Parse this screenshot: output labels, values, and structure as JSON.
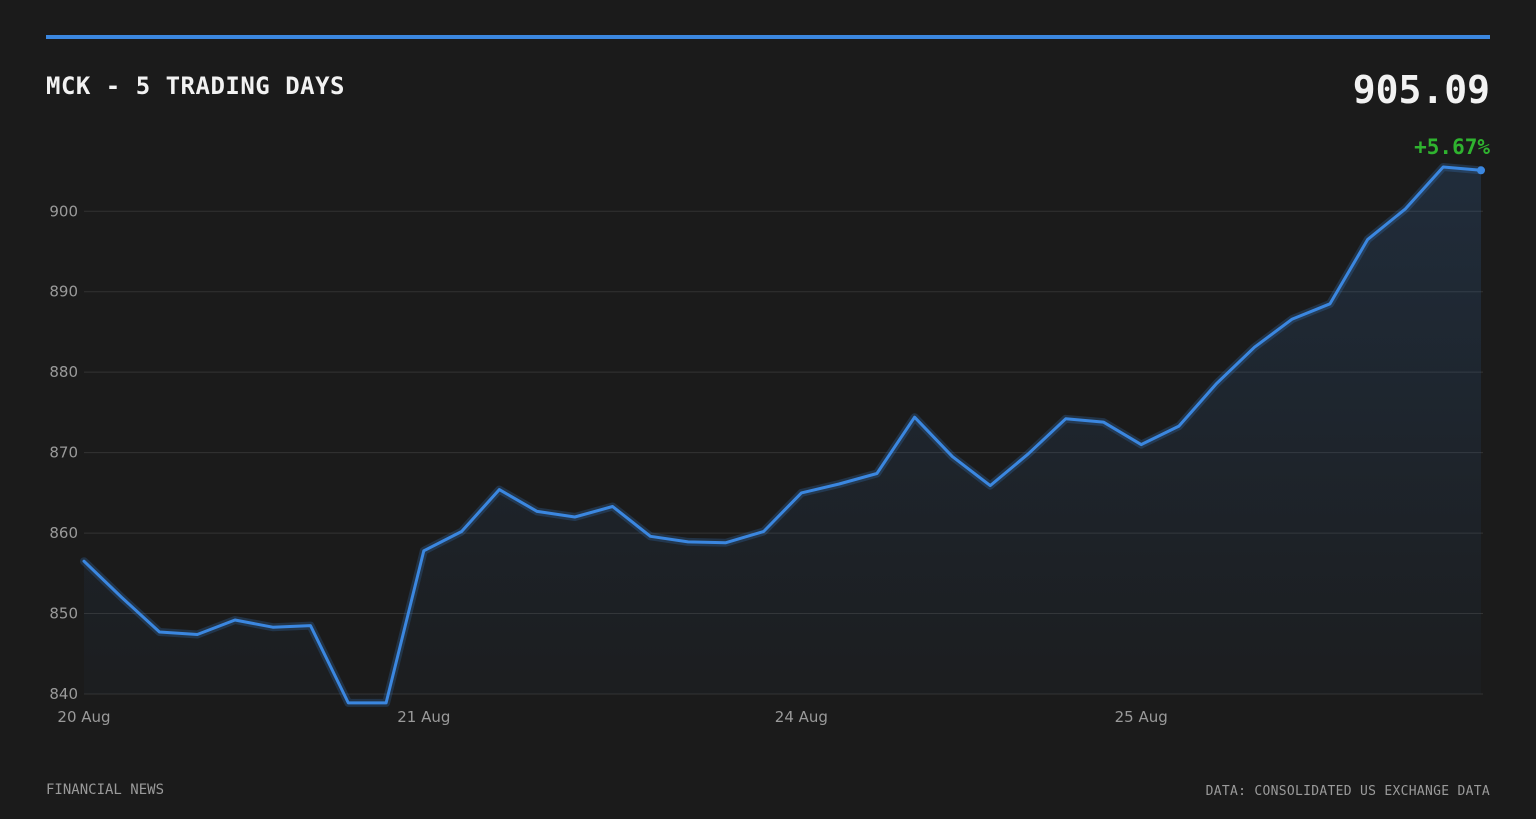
{
  "header": {
    "title": "MCK - 5 TRADING DAYS",
    "price": "905.09",
    "change": "+5.67%"
  },
  "footer": {
    "source_left": "FINANCIAL NEWS",
    "source_right": "DATA: CONSOLIDATED US EXCHANGE DATA"
  },
  "colors": {
    "background": "#1b1b1b",
    "accent": "#3b87e0",
    "positive": "#2fb32f",
    "grid": "#333333",
    "text_muted": "#9a9a9a"
  },
  "chart_data": {
    "type": "area",
    "title": "MCK - 5 TRADING DAYS",
    "xlabel": "",
    "ylabel": "",
    "ylim": [
      840,
      905.5
    ],
    "y_ticks": [
      840,
      850,
      860,
      870,
      880,
      890,
      900
    ],
    "grid": true,
    "legend": "none",
    "x_tick_labels": [
      {
        "label": "20 Aug",
        "index": 0
      },
      {
        "label": "21 Aug",
        "index": 9
      },
      {
        "label": "24 Aug",
        "index": 19
      },
      {
        "label": "25 Aug",
        "index": 28
      }
    ],
    "series": [
      {
        "values": [
          856.5,
          852.0,
          847.7,
          847.4,
          849.2,
          848.3,
          848.5,
          838.9,
          838.9,
          857.8,
          860.2,
          865.4,
          862.7,
          862.0,
          863.3,
          859.6,
          858.9,
          858.8,
          860.2,
          865.0,
          866.1,
          867.4,
          874.4,
          869.5,
          865.9,
          869.8,
          874.2,
          873.8,
          871.0,
          873.3,
          878.6,
          883.1,
          886.6,
          888.5,
          896.5,
          900.3,
          905.5,
          905.09
        ]
      }
    ]
  }
}
